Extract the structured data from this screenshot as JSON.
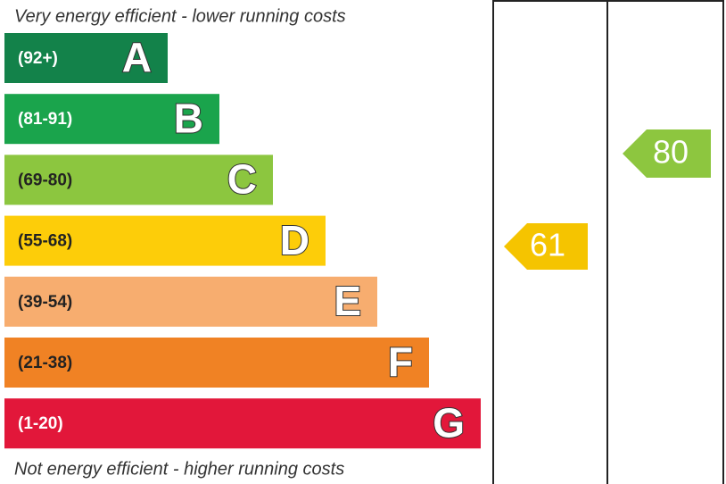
{
  "header": {
    "top_note": "Very energy efficient - lower running costs",
    "bottom_note": "Not energy efficient - higher running costs"
  },
  "bands": [
    {
      "range": "(92+)",
      "letter": "A"
    },
    {
      "range": "(81-91)",
      "letter": "B"
    },
    {
      "range": "(69-80)",
      "letter": "C"
    },
    {
      "range": "(55-68)",
      "letter": "D"
    },
    {
      "range": "(39-54)",
      "letter": "E"
    },
    {
      "range": "(21-38)",
      "letter": "F"
    },
    {
      "range": "(1-20)",
      "letter": "G"
    }
  ],
  "ratings": {
    "current": "61",
    "potential": "80"
  }
}
